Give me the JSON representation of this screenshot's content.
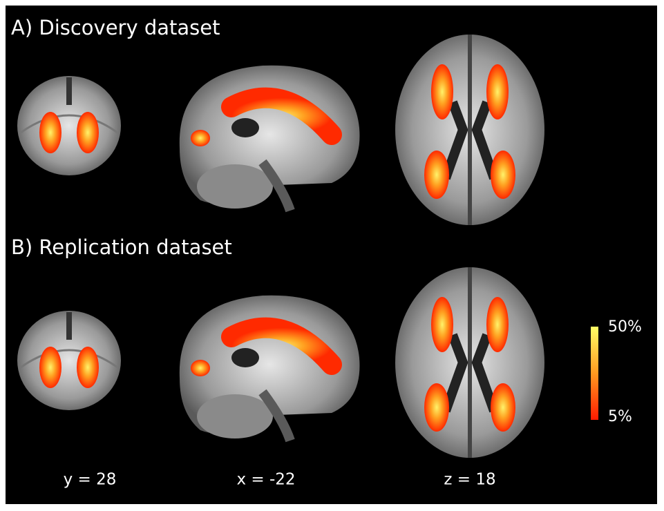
{
  "panels": [
    {
      "title": "A) Discovery dataset"
    },
    {
      "title": "B) Replication dataset"
    }
  ],
  "slice_labels": [
    "y = 28",
    "x = -22",
    "z = 18"
  ],
  "colorbar": {
    "max_label": "50%",
    "min_label": "5%"
  }
}
